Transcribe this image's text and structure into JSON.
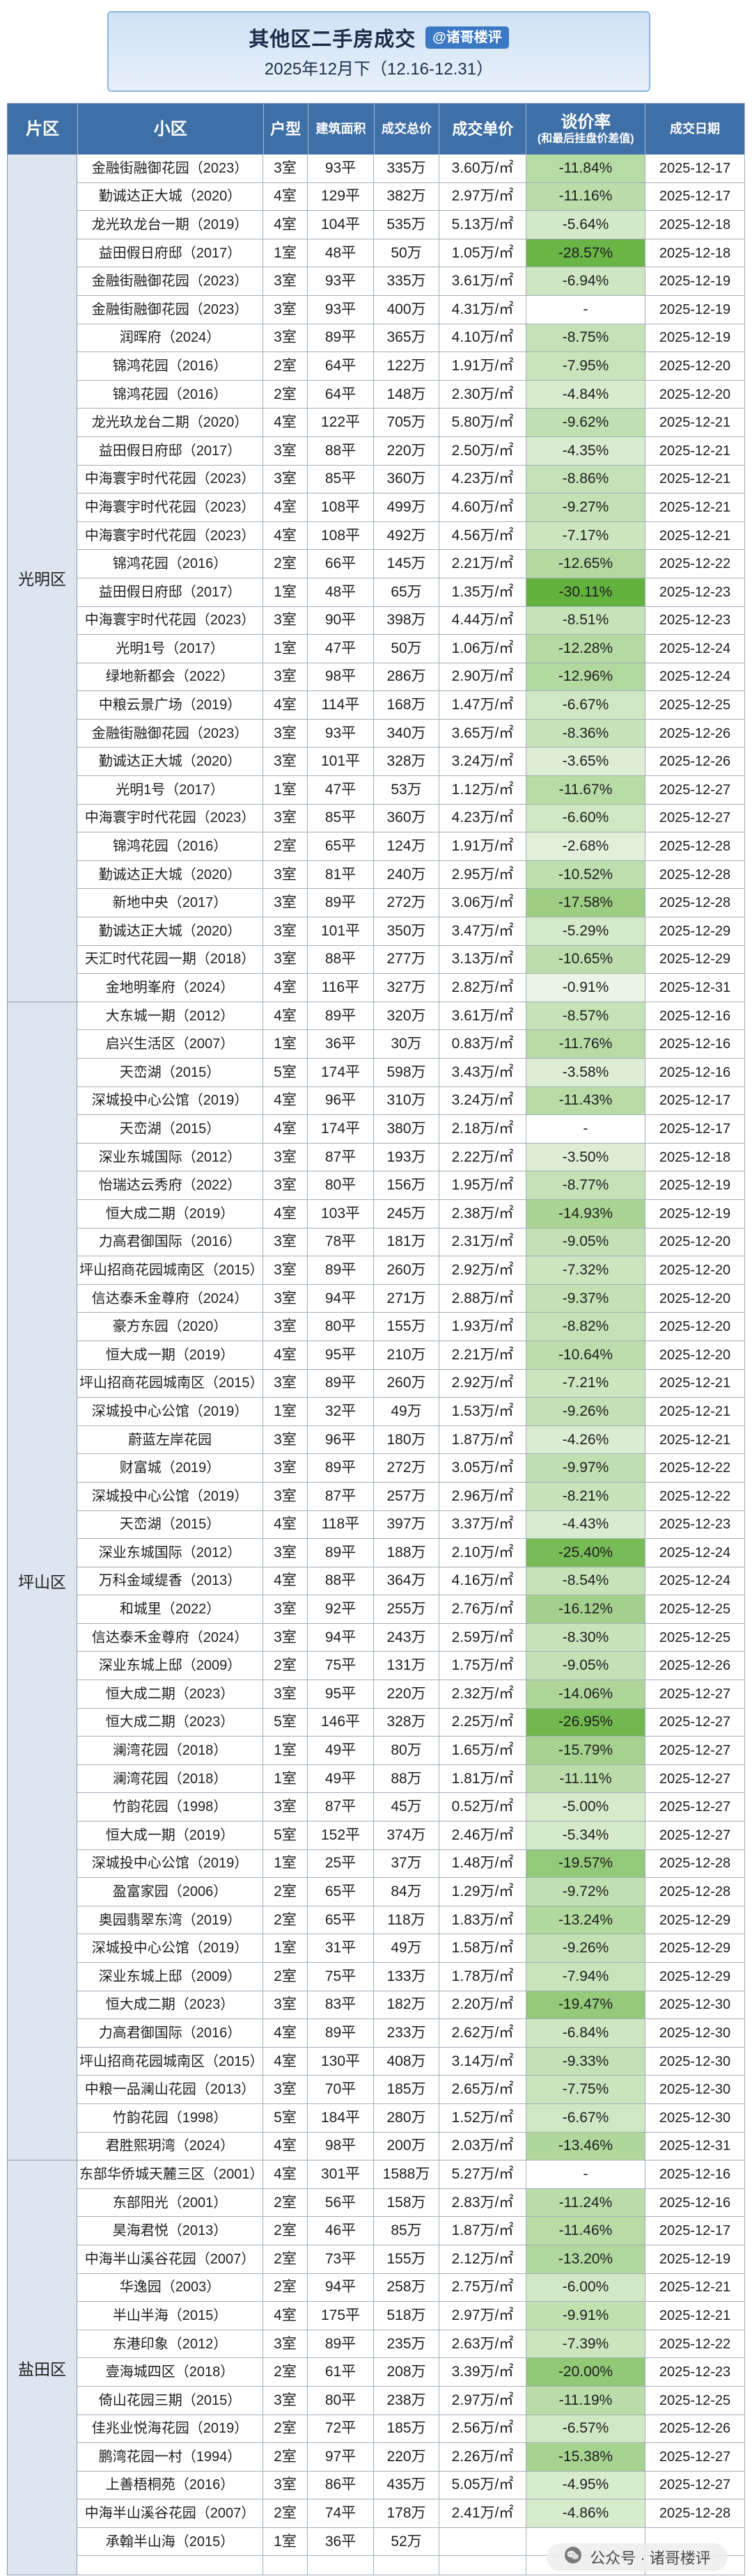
{
  "header": {
    "title": "其他区二手房成交",
    "badge": "@诸哥楼评",
    "subtitle": "2025年12月下（12.16-12.31）"
  },
  "columns": {
    "district": "片区",
    "community": "小区",
    "layout": "户型",
    "area": "建筑面积",
    "total": "成交总价",
    "unit": "成交单价",
    "rate": "谈价率",
    "rate_note": "(和最后挂盘价差值)",
    "date": "成交日期"
  },
  "districts": [
    {
      "name": "光明区",
      "rows": [
        [
          "金融街融御花园（2023）",
          "3室",
          "93平",
          "335万",
          "3.60万/㎡",
          "-11.84%",
          "2025-12-17"
        ],
        [
          "勤诚达正大城（2020）",
          "4室",
          "129平",
          "382万",
          "2.97万/㎡",
          "-11.16%",
          "2025-12-17"
        ],
        [
          "龙光玖龙台一期（2019）",
          "4室",
          "104平",
          "535万",
          "5.13万/㎡",
          "-5.64%",
          "2025-12-18"
        ],
        [
          "益田假日府邸（2017）",
          "1室",
          "48平",
          "50万",
          "1.05万/㎡",
          "-28.57%",
          "2025-12-18"
        ],
        [
          "金融街融御花园（2023）",
          "3室",
          "93平",
          "335万",
          "3.61万/㎡",
          "-6.94%",
          "2025-12-19"
        ],
        [
          "金融街融御花园（2023）",
          "3室",
          "93平",
          "400万",
          "4.31万/㎡",
          "-",
          "2025-12-19"
        ],
        [
          "润晖府（2024）",
          "3室",
          "89平",
          "365万",
          "4.10万/㎡",
          "-8.75%",
          "2025-12-19"
        ],
        [
          "锦鸿花园（2016）",
          "2室",
          "64平",
          "122万",
          "1.91万/㎡",
          "-7.95%",
          "2025-12-20"
        ],
        [
          "锦鸿花园（2016）",
          "2室",
          "64平",
          "148万",
          "2.30万/㎡",
          "-4.84%",
          "2025-12-20"
        ],
        [
          "龙光玖龙台二期（2020）",
          "4室",
          "122平",
          "705万",
          "5.80万/㎡",
          "-9.62%",
          "2025-12-21"
        ],
        [
          "益田假日府邸（2017）",
          "3室",
          "88平",
          "220万",
          "2.50万/㎡",
          "-4.35%",
          "2025-12-21"
        ],
        [
          "中海寰宇时代花园（2023）",
          "3室",
          "85平",
          "360万",
          "4.23万/㎡",
          "-8.86%",
          "2025-12-21"
        ],
        [
          "中海寰宇时代花园（2023）",
          "4室",
          "108平",
          "499万",
          "4.60万/㎡",
          "-9.27%",
          "2025-12-21"
        ],
        [
          "中海寰宇时代花园（2023）",
          "4室",
          "108平",
          "492万",
          "4.56万/㎡",
          "-7.17%",
          "2025-12-21"
        ],
        [
          "锦鸿花园（2016）",
          "2室",
          "66平",
          "145万",
          "2.21万/㎡",
          "-12.65%",
          "2025-12-22"
        ],
        [
          "益田假日府邸（2017）",
          "1室",
          "48平",
          "65万",
          "1.35万/㎡",
          "-30.11%",
          "2025-12-23"
        ],
        [
          "中海寰宇时代花园（2023）",
          "3室",
          "90平",
          "398万",
          "4.44万/㎡",
          "-8.51%",
          "2025-12-23"
        ],
        [
          "光明1号（2017）",
          "1室",
          "47平",
          "50万",
          "1.06万/㎡",
          "-12.28%",
          "2025-12-24"
        ],
        [
          "绿地新都会（2022）",
          "3室",
          "98平",
          "286万",
          "2.90万/㎡",
          "-12.96%",
          "2025-12-24"
        ],
        [
          "中粮云景广场（2019）",
          "4室",
          "114平",
          "168万",
          "1.47万/㎡",
          "-6.67%",
          "2025-12-25"
        ],
        [
          "金融街融御花园（2023）",
          "3室",
          "93平",
          "340万",
          "3.65万/㎡",
          "-8.36%",
          "2025-12-26"
        ],
        [
          "勤诚达正大城（2020）",
          "3室",
          "101平",
          "328万",
          "3.24万/㎡",
          "-3.65%",
          "2025-12-26"
        ],
        [
          "光明1号（2017）",
          "1室",
          "47平",
          "53万",
          "1.12万/㎡",
          "-11.67%",
          "2025-12-27"
        ],
        [
          "中海寰宇时代花园（2023）",
          "3室",
          "85平",
          "360万",
          "4.23万/㎡",
          "-6.60%",
          "2025-12-27"
        ],
        [
          "锦鸿花园（2016）",
          "2室",
          "65平",
          "124万",
          "1.91万/㎡",
          "-2.68%",
          "2025-12-28"
        ],
        [
          "勤诚达正大城（2020）",
          "3室",
          "81平",
          "240万",
          "2.95万/㎡",
          "-10.52%",
          "2025-12-28"
        ],
        [
          "新地中央（2017）",
          "3室",
          "89平",
          "272万",
          "3.06万/㎡",
          "-17.58%",
          "2025-12-28"
        ],
        [
          "勤诚达正大城（2020）",
          "3室",
          "101平",
          "350万",
          "3.47万/㎡",
          "-5.29%",
          "2025-12-29"
        ],
        [
          "天汇时代花园一期（2018）",
          "3室",
          "88平",
          "277万",
          "3.13万/㎡",
          "-10.65%",
          "2025-12-29"
        ],
        [
          "金地明峯府（2024）",
          "4室",
          "116平",
          "327万",
          "2.82万/㎡",
          "-0.91%",
          "2025-12-31"
        ]
      ]
    },
    {
      "name": "坪山区",
      "rows": [
        [
          "大东城一期（2012）",
          "4室",
          "89平",
          "320万",
          "3.61万/㎡",
          "-8.57%",
          "2025-12-16"
        ],
        [
          "启兴生活区（2007）",
          "1室",
          "36平",
          "30万",
          "0.83万/㎡",
          "-11.76%",
          "2025-12-16"
        ],
        [
          "天峦湖（2015）",
          "5室",
          "174平",
          "598万",
          "3.43万/㎡",
          "-3.58%",
          "2025-12-16"
        ],
        [
          "深城投中心公馆（2019）",
          "4室",
          "96平",
          "310万",
          "3.24万/㎡",
          "-11.43%",
          "2025-12-17"
        ],
        [
          "天峦湖（2015）",
          "4室",
          "174平",
          "380万",
          "2.18万/㎡",
          "-",
          "2025-12-17"
        ],
        [
          "深业东城国际（2012）",
          "3室",
          "87平",
          "193万",
          "2.22万/㎡",
          "-3.50%",
          "2025-12-18"
        ],
        [
          "怡瑞达云秀府（2022）",
          "3室",
          "80平",
          "156万",
          "1.95万/㎡",
          "-8.77%",
          "2025-12-19"
        ],
        [
          "恒大成二期（2019）",
          "4室",
          "103平",
          "245万",
          "2.38万/㎡",
          "-14.93%",
          "2025-12-19"
        ],
        [
          "力高君御国际（2016）",
          "3室",
          "78平",
          "181万",
          "2.31万/㎡",
          "-9.05%",
          "2025-12-20"
        ],
        [
          "坪山招商花园城南区（2015）",
          "3室",
          "89平",
          "260万",
          "2.92万/㎡",
          "-7.32%",
          "2025-12-20"
        ],
        [
          "信达泰禾金尊府（2024）",
          "3室",
          "94平",
          "271万",
          "2.88万/㎡",
          "-9.37%",
          "2025-12-20"
        ],
        [
          "豪方东园（2020）",
          "3室",
          "80平",
          "155万",
          "1.93万/㎡",
          "-8.82%",
          "2025-12-20"
        ],
        [
          "恒大成一期（2019）",
          "4室",
          "95平",
          "210万",
          "2.21万/㎡",
          "-10.64%",
          "2025-12-20"
        ],
        [
          "坪山招商花园城南区（2015）",
          "3室",
          "89平",
          "260万",
          "2.92万/㎡",
          "-7.21%",
          "2025-12-21"
        ],
        [
          "深城投中心公馆（2019）",
          "1室",
          "32平",
          "49万",
          "1.53万/㎡",
          "-9.26%",
          "2025-12-21"
        ],
        [
          "蔚蓝左岸花园",
          "3室",
          "96平",
          "180万",
          "1.87万/㎡",
          "-4.26%",
          "2025-12-21"
        ],
        [
          "财富城（2019）",
          "3室",
          "89平",
          "272万",
          "3.05万/㎡",
          "-9.97%",
          "2025-12-22"
        ],
        [
          "深城投中心公馆（2019）",
          "3室",
          "87平",
          "257万",
          "2.96万/㎡",
          "-8.21%",
          "2025-12-22"
        ],
        [
          "天峦湖（2015）",
          "4室",
          "118平",
          "397万",
          "3.37万/㎡",
          "-4.43%",
          "2025-12-23"
        ],
        [
          "深业东城国际（2012）",
          "3室",
          "89平",
          "188万",
          "2.10万/㎡",
          "-25.40%",
          "2025-12-24"
        ],
        [
          "万科金域缇香（2013）",
          "4室",
          "88平",
          "364万",
          "4.16万/㎡",
          "-8.54%",
          "2025-12-24"
        ],
        [
          "和城里（2022）",
          "3室",
          "92平",
          "255万",
          "2.76万/㎡",
          "-16.12%",
          "2025-12-25"
        ],
        [
          "信达泰禾金尊府（2024）",
          "3室",
          "94平",
          "243万",
          "2.59万/㎡",
          "-8.30%",
          "2025-12-25"
        ],
        [
          "深业东城上邸（2009）",
          "2室",
          "75平",
          "131万",
          "1.75万/㎡",
          "-9.05%",
          "2025-12-26"
        ],
        [
          "恒大成二期（2023）",
          "3室",
          "95平",
          "220万",
          "2.32万/㎡",
          "-14.06%",
          "2025-12-27"
        ],
        [
          "恒大成二期（2023）",
          "5室",
          "146平",
          "328万",
          "2.25万/㎡",
          "-26.95%",
          "2025-12-27"
        ],
        [
          "澜湾花园（2018）",
          "1室",
          "49平",
          "80万",
          "1.65万/㎡",
          "-15.79%",
          "2025-12-27"
        ],
        [
          "澜湾花园（2018）",
          "1室",
          "49平",
          "88万",
          "1.81万/㎡",
          "-11.11%",
          "2025-12-27"
        ],
        [
          "竹韵花园（1998）",
          "3室",
          "87平",
          "45万",
          "0.52万/㎡",
          "-5.00%",
          "2025-12-27"
        ],
        [
          "恒大成一期（2019）",
          "5室",
          "152平",
          "374万",
          "2.46万/㎡",
          "-5.34%",
          "2025-12-27"
        ],
        [
          "深城投中心公馆（2019）",
          "1室",
          "25平",
          "37万",
          "1.48万/㎡",
          "-19.57%",
          "2025-12-28"
        ],
        [
          "盈富家园（2006）",
          "2室",
          "65平",
          "84万",
          "1.29万/㎡",
          "-9.72%",
          "2025-12-28"
        ],
        [
          "奥园翡翠东湾（2019）",
          "2室",
          "65平",
          "118万",
          "1.83万/㎡",
          "-13.24%",
          "2025-12-29"
        ],
        [
          "深城投中心公馆（2019）",
          "1室",
          "31平",
          "49万",
          "1.58万/㎡",
          "-9.26%",
          "2025-12-29"
        ],
        [
          "深业东城上邸（2009）",
          "2室",
          "75平",
          "133万",
          "1.78万/㎡",
          "-7.94%",
          "2025-12-29"
        ],
        [
          "恒大成二期（2023）",
          "3室",
          "83平",
          "182万",
          "2.20万/㎡",
          "-19.47%",
          "2025-12-30"
        ],
        [
          "力高君御国际（2016）",
          "4室",
          "89平",
          "233万",
          "2.62万/㎡",
          "-6.84%",
          "2025-12-30"
        ],
        [
          "坪山招商花园城南区（2015）",
          "4室",
          "130平",
          "408万",
          "3.14万/㎡",
          "-9.33%",
          "2025-12-30"
        ],
        [
          "中粮一品澜山花园（2013）",
          "3室",
          "70平",
          "185万",
          "2.65万/㎡",
          "-7.75%",
          "2025-12-30"
        ],
        [
          "竹韵花园（1998）",
          "5室",
          "184平",
          "280万",
          "1.52万/㎡",
          "-6.67%",
          "2025-12-30"
        ],
        [
          "君胜熙玥湾（2024）",
          "4室",
          "98平",
          "200万",
          "2.03万/㎡",
          "-13.46%",
          "2025-12-31"
        ]
      ]
    },
    {
      "name": "盐田区",
      "rows": [
        [
          "东部华侨城天麓三区（2001）",
          "4室",
          "301平",
          "1588万",
          "5.27万/㎡",
          "-",
          "2025-12-16"
        ],
        [
          "东部阳光（2001）",
          "2室",
          "56平",
          "158万",
          "2.83万/㎡",
          "-11.24%",
          "2025-12-16"
        ],
        [
          "昊海君悦（2013）",
          "2室",
          "46平",
          "85万",
          "1.87万/㎡",
          "-11.46%",
          "2025-12-17"
        ],
        [
          "中海半山溪谷花园（2007）",
          "2室",
          "73平",
          "155万",
          "2.12万/㎡",
          "-13.20%",
          "2025-12-19"
        ],
        [
          "华逸园（2003）",
          "2室",
          "94平",
          "258万",
          "2.75万/㎡",
          "-6.00%",
          "2025-12-21"
        ],
        [
          "半山半海（2015）",
          "4室",
          "175平",
          "518万",
          "2.97万/㎡",
          "-9.91%",
          "2025-12-21"
        ],
        [
          "东港印象（2012）",
          "3室",
          "89平",
          "235万",
          "2.63万/㎡",
          "-7.39%",
          "2025-12-22"
        ],
        [
          "壹海城四区（2018）",
          "2室",
          "61平",
          "208万",
          "3.39万/㎡",
          "-20.00%",
          "2025-12-23"
        ],
        [
          "倚山花园三期（2015）",
          "3室",
          "80平",
          "238万",
          "2.97万/㎡",
          "-11.19%",
          "2025-12-25"
        ],
        [
          "佳兆业悦海花园（2019）",
          "2室",
          "72平",
          "185万",
          "2.56万/㎡",
          "-6.57%",
          "2025-12-26"
        ],
        [
          "鹏湾花园一村（1994）",
          "2室",
          "97平",
          "220万",
          "2.26万/㎡",
          "-15.38%",
          "2025-12-27"
        ],
        [
          "上善梧桐苑（2016）",
          "3室",
          "86平",
          "435万",
          "5.05万/㎡",
          "-4.95%",
          "2025-12-27"
        ],
        [
          "中海半山溪谷花园（2007）",
          "2室",
          "74平",
          "178万",
          "2.41万/㎡",
          "-4.86%",
          "2025-12-28"
        ],
        [
          "承翰半山海（2015）",
          "1室",
          "36平",
          "52万",
          null,
          null,
          null
        ]
      ]
    }
  ],
  "watermark": {
    "text": "公众号 · 诸哥楼评",
    "icon": "wechat-official-account-icon"
  },
  "colors": {
    "header_bg": "#3e6fa6",
    "district_bg": "#dde6f0",
    "badge_bg": "#3a78c4",
    "title_bg_top": "#cfe2f5",
    "title_bg_bottom": "#e7f0fa",
    "rate_low": "#eef6e9",
    "rate_high": "#63b23d"
  }
}
